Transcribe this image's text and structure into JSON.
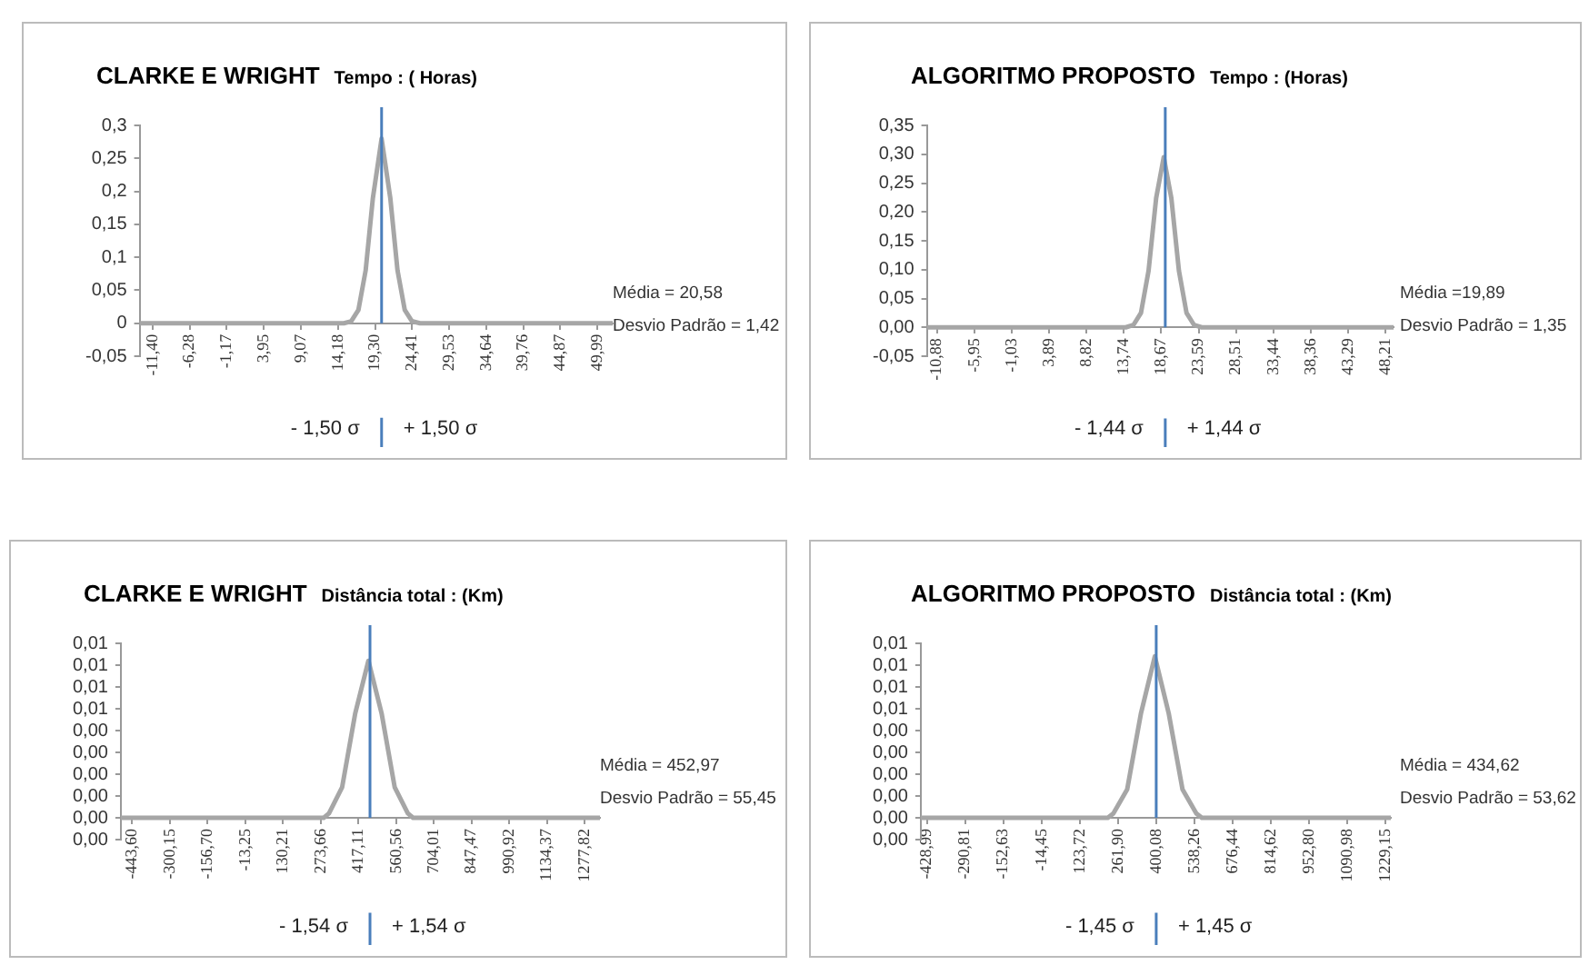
{
  "chart_data": [
    {
      "type": "line",
      "title": "CLARKE E WRIGHT",
      "subtitle": "Tempo : ( Horas)",
      "marker": "none",
      "grid": false,
      "series": [
        {
          "color": "#a6a6a6",
          "x": [
            -13.2,
            15,
            16,
            17,
            18,
            19,
            20.2,
            21.4,
            22.4,
            23.4,
            24.4,
            25.5,
            52.1
          ],
          "values": [
            0,
            0,
            0.003,
            0.02,
            0.08,
            0.19,
            0.28,
            0.19,
            0.08,
            0.02,
            0.003,
            0,
            0
          ]
        }
      ],
      "xlim": [
        -13.2,
        52.1
      ],
      "xticks": [
        {
          "value": -11.4,
          "label": "-11,40"
        },
        {
          "value": -6.28,
          "label": "-6,28"
        },
        {
          "value": -1.17,
          "label": "-1,17"
        },
        {
          "value": 3.95,
          "label": "3,95"
        },
        {
          "value": 9.07,
          "label": "9,07"
        },
        {
          "value": 14.18,
          "label": "14,18"
        },
        {
          "value": 19.3,
          "label": "19,30"
        },
        {
          "value": 24.41,
          "label": "24,41"
        },
        {
          "value": 29.53,
          "label": "29,53"
        },
        {
          "value": 34.64,
          "label": "34,64"
        },
        {
          "value": 39.76,
          "label": "39,76"
        },
        {
          "value": 44.87,
          "label": "44,87"
        },
        {
          "value": 49.99,
          "label": "49,99"
        }
      ],
      "ylim": [
        -0.05,
        0.3
      ],
      "yticks": [
        {
          "value": -0.05,
          "label": "-0,05"
        },
        0,
        {
          "value": 0.05,
          "label": "0,05"
        },
        {
          "value": 0.1,
          "label": "0,1"
        },
        {
          "value": 0.15,
          "label": "0,15"
        },
        {
          "value": 0.2,
          "label": "0,2"
        },
        {
          "value": 0.25,
          "label": "0,25"
        },
        {
          "value": 0.3,
          "label": "0,3"
        }
      ],
      "ref_lines": [
        {
          "axis": "x",
          "value": 20.2,
          "color": "#4a7ebb"
        }
      ],
      "annotations": [
        "Média = 20,58",
        "Desvio Padrão = 1,42",
        "- 1,50 σ",
        "+ 1,50 σ"
      ]
    },
    {
      "type": "line",
      "title": "ALGORITMO PROPOSTO",
      "subtitle": "Tempo  : (Horas)",
      "marker": "none",
      "grid": false,
      "series": [
        {
          "color": "#a6a6a6",
          "x": [
            -12.2,
            14,
            15,
            16,
            17,
            18,
            19,
            20,
            21,
            22,
            23,
            24,
            49.3
          ],
          "values": [
            0,
            0,
            0.004,
            0.025,
            0.098,
            0.224,
            0.295,
            0.224,
            0.098,
            0.025,
            0.004,
            0,
            0
          ]
        }
      ],
      "xlim": [
        -12.2,
        49.3
      ],
      "xticks": [
        {
          "value": -10.88,
          "label": "-10,88"
        },
        {
          "value": -5.95,
          "label": "-5,95"
        },
        {
          "value": -1.03,
          "label": "-1,03"
        },
        {
          "value": 3.89,
          "label": "3,89"
        },
        {
          "value": 8.82,
          "label": "8,82"
        },
        {
          "value": 13.74,
          "label": "13,74"
        },
        {
          "value": 18.67,
          "label": "18,67"
        },
        {
          "value": 23.59,
          "label": "23,59"
        },
        {
          "value": 28.51,
          "label": "28,51"
        },
        {
          "value": 33.44,
          "label": "33,44"
        },
        {
          "value": 38.36,
          "label": "38,36"
        },
        {
          "value": 43.29,
          "label": "43,29"
        },
        {
          "value": 48.21,
          "label": "48,21"
        }
      ],
      "ylim": [
        -0.05,
        0.35
      ],
      "yticks": [
        {
          "value": -0.05,
          "label": "-0,05"
        },
        {
          "value": 0,
          "label": "0,00"
        },
        {
          "value": 0.05,
          "label": "0,05"
        },
        {
          "value": 0.1,
          "label": "0,10"
        },
        {
          "value": 0.15,
          "label": "0,15"
        },
        {
          "value": 0.2,
          "label": "0,20"
        },
        {
          "value": 0.25,
          "label": "0,25"
        },
        {
          "value": 0.3,
          "label": "0,30"
        },
        {
          "value": 0.35,
          "label": "0,35"
        }
      ],
      "ref_lines": [
        {
          "axis": "x",
          "value": 19.2,
          "color": "#4a7ebb"
        }
      ],
      "annotations": [
        "Média =19,89",
        "Desvio Padrão = 1,35",
        "- 1,44 σ",
        "+ 1,44 σ"
      ]
    },
    {
      "type": "line",
      "title": "CLARKE E WRIGHT",
      "subtitle": "Distância total : (Km)",
      "marker": "none",
      "grid": false,
      "series": [
        {
          "color": "#a6a6a6",
          "x": [
            -487,
            285,
            305,
            355,
            405,
            455,
            505,
            555,
            605,
            625,
            1336
          ],
          "values": [
            0,
            0,
            0.0002,
            0.0014,
            0.0048,
            0.0072,
            0.0048,
            0.0014,
            0.0002,
            0,
            0
          ]
        }
      ],
      "xlim": [
        -487,
        1336
      ],
      "xticks": [
        {
          "value": -443.6,
          "label": "-443,60"
        },
        {
          "value": -300.15,
          "label": "-300,15"
        },
        {
          "value": -156.7,
          "label": "-156,70"
        },
        {
          "value": -13.25,
          "label": "-13,25"
        },
        {
          "value": 130.21,
          "label": "130,21"
        },
        {
          "value": 273.66,
          "label": "273,66"
        },
        {
          "value": 417.11,
          "label": "417,11"
        },
        {
          "value": 560.56,
          "label": "560,56"
        },
        {
          "value": 704.01,
          "label": "704,01"
        },
        {
          "value": 847.47,
          "label": "847,47"
        },
        {
          "value": 990.92,
          "label": "990,92"
        },
        {
          "value": 1134.37,
          "label": "1134,37"
        },
        {
          "value": 1277.82,
          "label": "1277,82"
        }
      ],
      "ylim": [
        -0.001,
        0.008
      ],
      "yticks": [
        {
          "value": -0.001,
          "label": "0,00"
        },
        {
          "value": 0,
          "label": "0,00"
        },
        {
          "value": 0.001,
          "label": "0,00"
        },
        {
          "value": 0.002,
          "label": "0,00"
        },
        {
          "value": 0.003,
          "label": "0,00"
        },
        {
          "value": 0.004,
          "label": "0,00"
        },
        {
          "value": 0.005,
          "label": "0,01"
        },
        {
          "value": 0.006,
          "label": "0,01"
        },
        {
          "value": 0.007,
          "label": "0,01"
        },
        {
          "value": 0.008,
          "label": "0,01"
        }
      ],
      "ref_lines": [
        {
          "axis": "x",
          "value": 461,
          "color": "#4a7ebb"
        }
      ],
      "annotations": [
        "Média = 452,97",
        "Desvio Padrão = 55,45",
        "- 1,54 σ",
        "+ 1,54 σ"
      ]
    },
    {
      "type": "line",
      "title": "ALGORITMO PROPOSTO",
      "subtitle": "Distância total : (Km)",
      "marker": "none",
      "grid": false,
      "series": [
        {
          "color": "#a6a6a6",
          "x": [
            -451,
            225,
            245,
            295,
            345,
            395,
            445,
            495,
            545,
            565,
            1248.5
          ],
          "values": [
            0,
            0,
            0.0002,
            0.0013,
            0.0048,
            0.0074,
            0.0048,
            0.0013,
            0.0002,
            0,
            0
          ]
        }
      ],
      "xlim": [
        -451,
        1248.5
      ],
      "xticks": [
        {
          "value": -428.99,
          "label": "-428,99"
        },
        {
          "value": -290.81,
          "label": "-290,81"
        },
        {
          "value": -152.63,
          "label": "-152,63"
        },
        {
          "value": -14.45,
          "label": "-14,45"
        },
        {
          "value": 123.72,
          "label": "123,72"
        },
        {
          "value": 261.9,
          "label": "261,90"
        },
        {
          "value": 400.08,
          "label": "400,08"
        },
        {
          "value": 538.26,
          "label": "538,26"
        },
        {
          "value": 676.44,
          "label": "676,44"
        },
        {
          "value": 814.62,
          "label": "814,62"
        },
        {
          "value": 952.8,
          "label": "952,80"
        },
        {
          "value": 1090.98,
          "label": "1090,98"
        },
        {
          "value": 1229.15,
          "label": "1229,15"
        }
      ],
      "ylim": [
        -0.001,
        0.008
      ],
      "yticks": [
        {
          "value": -0.001,
          "label": "0,00"
        },
        {
          "value": 0,
          "label": "0,00"
        },
        {
          "value": 0.001,
          "label": "0,00"
        },
        {
          "value": 0.002,
          "label": "0,00"
        },
        {
          "value": 0.003,
          "label": "0,00"
        },
        {
          "value": 0.004,
          "label": "0,00"
        },
        {
          "value": 0.005,
          "label": "0,01"
        },
        {
          "value": 0.006,
          "label": "0,01"
        },
        {
          "value": 0.007,
          "label": "0,01"
        },
        {
          "value": 0.008,
          "label": "0,01"
        }
      ],
      "ref_lines": [
        {
          "axis": "x",
          "value": 400,
          "color": "#4a7ebb"
        }
      ],
      "annotations": [
        "Média = 434,62",
        "Desvio Padrão = 53,62",
        "- 1,45 σ",
        "+ 1,45 σ"
      ]
    }
  ]
}
